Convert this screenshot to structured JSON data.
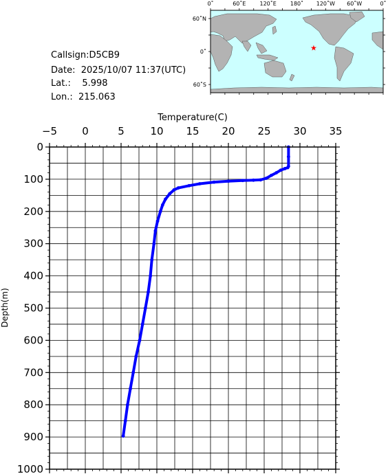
{
  "station": {
    "callsign_line": "Callsign:D5CB9",
    "date_line": "Date:  2025/10/07 11:37(UTC)",
    "lat_line": "Lat.:    5.998",
    "lon_line": "Lon.:  215.063"
  },
  "map": {
    "top_labels": [
      "0˚",
      "60˚E",
      "120˚E",
      "180˚",
      "120˚W",
      "60˚W",
      "0˚"
    ],
    "left_labels": [
      "60˚N",
      "0˚",
      "60˚S"
    ],
    "ocean_color": "#ccffff",
    "land_color": "#b3b3b3",
    "marker_color": "#ff0000",
    "marker_icon": "star-icon",
    "marker": {
      "lat": 5.998,
      "lon": 215.063
    }
  },
  "chart_data": {
    "type": "line",
    "title": "",
    "xlabel": "Temperature(C)",
    "ylabel": "Depth(m)",
    "xlim": [
      -5,
      35
    ],
    "ylim": [
      0,
      1000
    ],
    "y_inverted": true,
    "x_ticks": [
      -5,
      0,
      5,
      10,
      15,
      20,
      25,
      30,
      35
    ],
    "x_tick_labels": [
      "−5",
      "0",
      "5",
      "10",
      "15",
      "20",
      "25",
      "30",
      "35"
    ],
    "y_ticks": [
      0,
      100,
      200,
      300,
      400,
      500,
      600,
      700,
      800,
      900,
      1000
    ],
    "y_tick_labels": [
      "0",
      "100",
      "200",
      "300",
      "400",
      "500",
      "600",
      "700",
      "800",
      "900",
      "1000"
    ],
    "grid": true,
    "series": [
      {
        "color": "#0000ff",
        "points": [
          [
            28.4,
            0
          ],
          [
            28.4,
            30
          ],
          [
            28.4,
            60
          ],
          [
            28.3,
            64
          ],
          [
            27.9,
            67
          ],
          [
            27.3,
            72
          ],
          [
            26.7,
            80
          ],
          [
            26.0,
            88
          ],
          [
            25.3,
            97
          ],
          [
            24.5,
            102
          ],
          [
            23.5,
            103
          ],
          [
            22.0,
            104
          ],
          [
            20.0,
            106
          ],
          [
            18.0,
            109
          ],
          [
            16.0,
            114
          ],
          [
            14.5,
            120
          ],
          [
            13.0,
            127
          ],
          [
            12.4,
            133
          ],
          [
            11.8,
            145
          ],
          [
            11.2,
            162
          ],
          [
            10.8,
            180
          ],
          [
            10.5,
            200
          ],
          [
            10.1,
            230
          ],
          [
            9.8,
            260
          ],
          [
            9.6,
            300
          ],
          [
            9.3,
            350
          ],
          [
            9.1,
            400
          ],
          [
            8.8,
            450
          ],
          [
            8.4,
            500
          ],
          [
            8.0,
            550
          ],
          [
            7.6,
            600
          ],
          [
            7.1,
            650
          ],
          [
            6.7,
            700
          ],
          [
            6.3,
            750
          ],
          [
            5.9,
            800
          ],
          [
            5.6,
            850
          ],
          [
            5.3,
            897
          ]
        ]
      }
    ]
  }
}
